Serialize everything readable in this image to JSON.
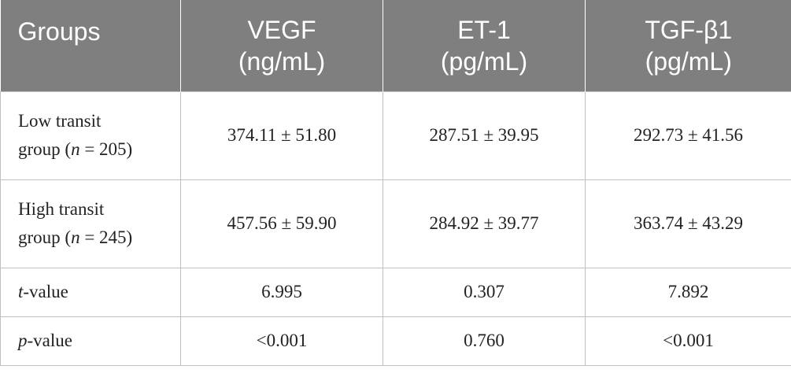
{
  "table": {
    "headers": [
      {
        "line1": "Groups",
        "line2": ""
      },
      {
        "line1": "VEGF",
        "line2": "(ng/mL)"
      },
      {
        "line1": "ET-1",
        "line2": "(pg/mL)"
      },
      {
        "line1": "TGF-β1",
        "line2": "(pg/mL)"
      }
    ],
    "rows": [
      {
        "label_line1": "Low transit",
        "label_line2_pre": "group (",
        "label_line2_var": "n",
        "label_line2_post": " = 205)",
        "values": [
          "374.11 ± 51.80",
          "287.51 ± 39.95",
          "292.73 ± 41.56"
        ]
      },
      {
        "label_line1": "High transit",
        "label_line2_pre": "group (",
        "label_line2_var": "n",
        "label_line2_post": " = 245)",
        "values": [
          "457.56 ± 59.90",
          "284.92 ± 39.77",
          "363.74 ± 43.29"
        ]
      },
      {
        "label_var": "t",
        "label_post": "-value",
        "values": [
          "6.995",
          "0.307",
          "7.892"
        ]
      },
      {
        "label_var": "p",
        "label_post": "-value",
        "values": [
          "<0.001",
          "0.760",
          "<0.001"
        ]
      }
    ]
  }
}
